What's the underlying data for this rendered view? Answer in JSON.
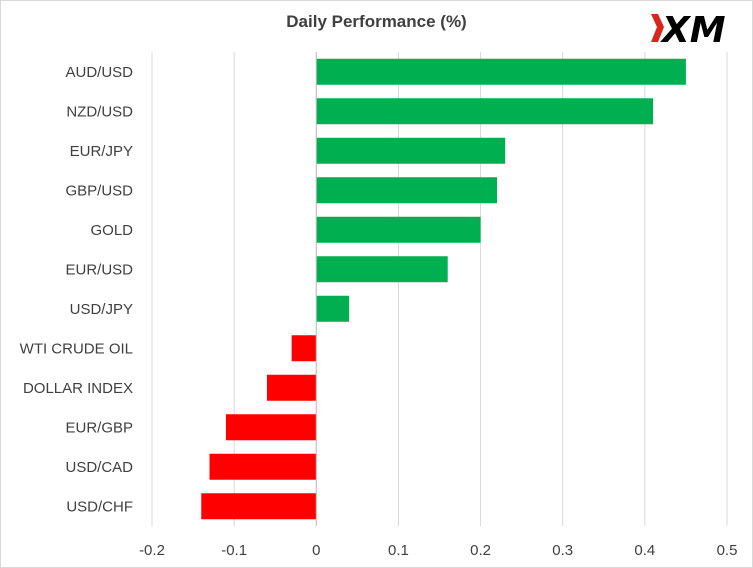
{
  "logo": {
    "text": "XM",
    "colors": {
      "mark": "#000000",
      "accent": "#d9261c"
    }
  },
  "chart_data": {
    "type": "bar",
    "orientation": "horizontal",
    "title": "Daily Performance (%)",
    "categories": [
      "AUD/USD",
      "NZD/USD",
      "EUR/JPY",
      "GBP/USD",
      "GOLD",
      "EUR/USD",
      "USD/JPY",
      "WTI CRUDE OIL",
      "DOLLAR INDEX",
      "EUR/GBP",
      "USD/CAD",
      "USD/CHF"
    ],
    "values": [
      0.45,
      0.41,
      0.23,
      0.22,
      0.2,
      0.16,
      0.04,
      -0.03,
      -0.06,
      -0.11,
      -0.13,
      -0.14
    ],
    "xlim": [
      -0.2,
      0.5
    ],
    "xticks": [
      "-0.2",
      "-0.1",
      "0",
      "0.1",
      "0.2",
      "0.3",
      "0.4",
      "0.5"
    ],
    "xlabel": "",
    "ylabel": "",
    "grid": "vertical",
    "legend": "none",
    "colors": {
      "positive": "#00b050",
      "negative": "#ff0000",
      "grid": "#d9d9d9",
      "text": "#404040"
    }
  }
}
